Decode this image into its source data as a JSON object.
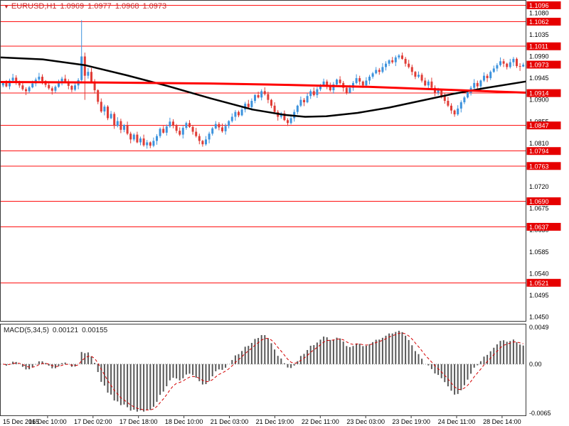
{
  "header": {
    "marker": "▼",
    "symbol_period": "EURUSD,H1",
    "open": "1.0969",
    "high": "1.0977",
    "low": "1.0968",
    "close": "1.0973"
  },
  "macd": {
    "label": "MACD(5,34,5)",
    "value_main": "0.00121",
    "value_signal": "0.00155",
    "axis": {
      "top": "0.0049",
      "zero": "0.00",
      "bottom": "-0.0065"
    }
  },
  "colors": {
    "bull": "#3d93dd",
    "bear": "#e03c36",
    "sr_line": "#ff1010",
    "badge_bg": "#e60000",
    "badge_text": "#ffffff",
    "ma_black": "#000000",
    "ma_red": "#ff0000",
    "hist": "#585858",
    "signal": "#d40000",
    "axis_text": "#000000",
    "border": "#3a3a3a"
  },
  "chart_data": {
    "type": "candlestick",
    "title": "EURUSD,H1",
    "symbol": "EURUSD",
    "timeframe": "H1",
    "ylim": [
      1.0442,
      1.1104
    ],
    "price_scale": 10000,
    "price_ticks": [
      1.108,
      1.1035,
      1.099,
      1.0945,
      1.09,
      1.0855,
      1.081,
      1.072,
      1.0675,
      1.063,
      1.0585,
      1.054,
      1.0495,
      1.045
    ],
    "sr_levels": [
      1.1096,
      1.1062,
      1.1011,
      1.0914,
      1.0847,
      1.0794,
      1.0763,
      1.069,
      1.0637,
      1.0521
    ],
    "current_price": 1.0973,
    "macd_axis": {
      "max": 0.0049,
      "min": -0.0065
    },
    "macd_params": {
      "fast": 5,
      "slow": 34,
      "signal": 5,
      "last_main": 0.00121,
      "last_signal": 0.00155
    },
    "time_labels": [
      "15 Dec 2015",
      "16 Dec 10:00",
      "17 Dec 02:00",
      "17 Dec 18:00",
      "18 Dec 10:00",
      "21 Dec 03:00",
      "21 Dec 19:00",
      "22 Dec 11:00",
      "23 Dec 03:00",
      "23 Dec 19:00",
      "24 Dec 11:00",
      "28 Dec 14:00"
    ],
    "ma_black": [
      [
        0,
        1.0988
      ],
      [
        0.08,
        1.0984
      ],
      [
        0.16,
        1.0972
      ],
      [
        0.24,
        1.0951
      ],
      [
        0.32,
        1.0928
      ],
      [
        0.4,
        1.0903
      ],
      [
        0.48,
        1.088
      ],
      [
        0.54,
        1.0869
      ],
      [
        0.58,
        1.0865
      ],
      [
        0.62,
        1.0866
      ],
      [
        0.68,
        1.0873
      ],
      [
        0.74,
        1.0884
      ],
      [
        0.8,
        1.0898
      ],
      [
        0.86,
        1.0912
      ],
      [
        0.92,
        1.0924
      ],
      [
        1,
        1.0938
      ]
    ],
    "ma_red": [
      [
        0,
        1.0937
      ],
      [
        0.2,
        1.0936
      ],
      [
        0.4,
        1.0934
      ],
      [
        0.55,
        1.0931
      ],
      [
        0.7,
        1.0927
      ],
      [
        0.85,
        1.0921
      ],
      [
        1,
        1.0915
      ]
    ],
    "candles_pips": [
      [
        10930,
        10938,
        10926,
        10935
      ],
      [
        10935,
        10941,
        10926,
        10928
      ],
      [
        10928,
        10944,
        10922,
        10940
      ],
      [
        10940,
        10954,
        10937,
        10946
      ],
      [
        10946,
        10951,
        10931,
        10938
      ],
      [
        10938,
        10940,
        10925,
        10930
      ],
      [
        10930,
        10937,
        10919,
        10922
      ],
      [
        10922,
        10926,
        10910,
        10918
      ],
      [
        10918,
        10929,
        10914,
        10926
      ],
      [
        10926,
        10940,
        10924,
        10934
      ],
      [
        10934,
        10946,
        10928,
        10942
      ],
      [
        10942,
        10956,
        10939,
        10948
      ],
      [
        10948,
        10953,
        10932,
        10939
      ],
      [
        10939,
        10941,
        10926,
        10931
      ],
      [
        10931,
        10938,
        10921,
        10924
      ],
      [
        10924,
        10928,
        10911,
        10919
      ],
      [
        10919,
        10930,
        10915,
        10927
      ],
      [
        10927,
        10942,
        10925,
        10936
      ],
      [
        10936,
        10948,
        10930,
        10944
      ],
      [
        10944,
        10952,
        10935,
        10938
      ],
      [
        10938,
        10943,
        10922,
        10929
      ],
      [
        10929,
        10931,
        10916,
        10921
      ],
      [
        10921,
        10937,
        10918,
        10930
      ],
      [
        10930,
        10945,
        10922,
        10941
      ],
      [
        10941,
        11065,
        10936,
        10990
      ],
      [
        10990,
        10998,
        10900,
        10950
      ],
      [
        10950,
        10966,
        10944,
        10958
      ],
      [
        10958,
        10966,
        10935,
        10938
      ],
      [
        10938,
        10943,
        10913,
        10920
      ],
      [
        10920,
        10922,
        10891,
        10896
      ],
      [
        10896,
        10903,
        10873,
        10876
      ],
      [
        10876,
        10890,
        10868,
        10886
      ],
      [
        10886,
        10889,
        10858,
        10862
      ],
      [
        10862,
        10877,
        10860,
        10871
      ],
      [
        10871,
        10875,
        10840,
        10846
      ],
      [
        10846,
        10864,
        10843,
        10856
      ],
      [
        10856,
        10861,
        10831,
        10838
      ],
      [
        10838,
        10850,
        10833,
        10848
      ],
      [
        10848,
        10855,
        10827,
        10830
      ],
      [
        10830,
        10834,
        10810,
        10818
      ],
      [
        10818,
        10831,
        10814,
        10828
      ],
      [
        10828,
        10834,
        10810,
        10812
      ],
      [
        10812,
        10824,
        10806,
        10820
      ],
      [
        10820,
        10828,
        10803,
        10806
      ],
      [
        10806,
        10817,
        10799,
        10812
      ],
      [
        10812,
        10814,
        10800,
        10805
      ],
      [
        10805,
        10822,
        10802,
        10815
      ],
      [
        10815,
        10829,
        10807,
        10825
      ],
      [
        10825,
        10843,
        10821,
        10840
      ],
      [
        10840,
        10846,
        10830,
        10832
      ],
      [
        10832,
        10849,
        10826,
        10845
      ],
      [
        10845,
        10863,
        10842,
        10855
      ],
      [
        10855,
        10860,
        10841,
        10848
      ],
      [
        10848,
        10850,
        10831,
        10836
      ],
      [
        10836,
        10843,
        10825,
        10828
      ],
      [
        10828,
        10846,
        10820,
        10842
      ],
      [
        10842,
        10855,
        10838,
        10852
      ],
      [
        10852,
        10858,
        10842,
        10844
      ],
      [
        10844,
        10848,
        10828,
        10834
      ],
      [
        10834,
        10842,
        10822,
        10825
      ],
      [
        10825,
        10830,
        10808,
        10815
      ],
      [
        10815,
        10817,
        10803,
        10808
      ],
      [
        10808,
        10825,
        10805,
        10818
      ],
      [
        10818,
        10834,
        10810,
        10830
      ],
      [
        10830,
        10844,
        10826,
        10841
      ],
      [
        10841,
        10856,
        10839,
        10850
      ],
      [
        10850,
        10854,
        10837,
        10843
      ],
      [
        10843,
        10851,
        10832,
        10835
      ],
      [
        10835,
        10851,
        10828,
        10846
      ],
      [
        10846,
        10858,
        10841,
        10856
      ],
      [
        10856,
        10872,
        10853,
        10865
      ],
      [
        10865,
        10879,
        10857,
        10875
      ],
      [
        10875,
        10878,
        10864,
        10868
      ],
      [
        10868,
        10886,
        10866,
        10880
      ],
      [
        10880,
        10896,
        10874,
        10892
      ],
      [
        10892,
        10900,
        10882,
        10885
      ],
      [
        10885,
        10903,
        10878,
        10898
      ],
      [
        10898,
        10912,
        10893,
        10910
      ],
      [
        10910,
        10917,
        10903,
        10905
      ],
      [
        10905,
        10922,
        10899,
        10918
      ],
      [
        10918,
        10926,
        10909,
        10912
      ],
      [
        10912,
        10917,
        10893,
        10900
      ],
      [
        10900,
        10902,
        10883,
        10888
      ],
      [
        10888,
        10895,
        10872,
        10875
      ],
      [
        10875,
        10879,
        10857,
        10865
      ],
      [
        10865,
        10875,
        10861,
        10872
      ],
      [
        10872,
        10878,
        10856,
        10858
      ],
      [
        10858,
        10862,
        10846,
        10852
      ],
      [
        10852,
        10870,
        10849,
        10862
      ],
      [
        10862,
        10880,
        10855,
        10875
      ],
      [
        10875,
        10890,
        10870,
        10888
      ],
      [
        10888,
        10907,
        10885,
        10900
      ],
      [
        10900,
        10904,
        10887,
        10895
      ],
      [
        10895,
        10914,
        10893,
        10908
      ],
      [
        10908,
        10922,
        10902,
        10918
      ],
      [
        10918,
        10926,
        10907,
        10910
      ],
      [
        10910,
        10927,
        10904,
        10922
      ],
      [
        10922,
        10933,
        10918,
        10930
      ],
      [
        10930,
        10944,
        10928,
        10938
      ],
      [
        10938,
        10942,
        10922,
        10928
      ],
      [
        10928,
        10936,
        10917,
        10920
      ],
      [
        10920,
        10937,
        10913,
        10932
      ],
      [
        10932,
        10944,
        10927,
        10942
      ],
      [
        10942,
        10949,
        10932,
        10935
      ],
      [
        10935,
        10939,
        10917,
        10925
      ],
      [
        10925,
        10928,
        10911,
        10915
      ],
      [
        10915,
        10931,
        10913,
        10925
      ],
      [
        10925,
        10939,
        10919,
        10935
      ],
      [
        10935,
        10953,
        10932,
        10945
      ],
      [
        10945,
        10950,
        10931,
        10938
      ],
      [
        10938,
        10940,
        10925,
        10930
      ],
      [
        10930,
        10947,
        10927,
        10940
      ],
      [
        10940,
        10952,
        10932,
        10948
      ],
      [
        10948,
        10958,
        10944,
        10955
      ],
      [
        10955,
        10968,
        10953,
        10962
      ],
      [
        10962,
        10966,
        10952,
        10958
      ],
      [
        10958,
        10976,
        10955,
        10968
      ],
      [
        10968,
        10980,
        10961,
        10975
      ],
      [
        10975,
        10984,
        10970,
        10982
      ],
      [
        10982,
        10989,
        10975,
        10978
      ],
      [
        10978,
        10992,
        10970,
        10988
      ],
      [
        10988,
        10995,
        10984,
        10992
      ],
      [
        10992,
        10998,
        10983,
        10985
      ],
      [
        10985,
        10989,
        10969,
        10975
      ],
      [
        10975,
        10983,
        10965,
        10968
      ],
      [
        10968,
        10973,
        10951,
        10958
      ],
      [
        10958,
        10960,
        10943,
        10948
      ],
      [
        10948,
        10959,
        10945,
        10952
      ],
      [
        10952,
        10956,
        10936,
        10940
      ],
      [
        10940,
        10946,
        10928,
        10930
      ],
      [
        10930,
        10942,
        10924,
        10938
      ],
      [
        10938,
        10946,
        10922,
        10925
      ],
      [
        10925,
        10930,
        10908,
        10915
      ],
      [
        10915,
        10925,
        10910,
        10920
      ],
      [
        10920,
        10922,
        10903,
        10908
      ],
      [
        10908,
        10914,
        10892,
        10898
      ],
      [
        10898,
        10906,
        10885,
        10888
      ],
      [
        10888,
        10893,
        10871,
        10878
      ],
      [
        10878,
        10880,
        10865,
        10870
      ],
      [
        10870,
        10889,
        10867,
        10882
      ],
      [
        10882,
        10899,
        10874,
        10895
      ],
      [
        10895,
        10908,
        10891,
        10905
      ],
      [
        10905,
        10921,
        10903,
        10915
      ],
      [
        10915,
        10929,
        10909,
        10925
      ],
      [
        10925,
        10943,
        10922,
        10935
      ],
      [
        10935,
        10940,
        10921,
        10928
      ],
      [
        10928,
        10942,
        10923,
        10940
      ],
      [
        10940,
        10957,
        10937,
        10950
      ],
      [
        10950,
        10954,
        10937,
        10945
      ],
      [
        10945,
        10961,
        10941,
        10958
      ],
      [
        10958,
        10971,
        10956,
        10965
      ],
      [
        10965,
        10976,
        10959,
        10972
      ],
      [
        10972,
        10988,
        10969,
        10980
      ],
      [
        10980,
        10985,
        10968,
        10975
      ],
      [
        10975,
        10977,
        10963,
        10968
      ],
      [
        10968,
        10985,
        10965,
        10978
      ],
      [
        10978,
        10989,
        10970,
        10985
      ],
      [
        10985,
        10988,
        10966,
        10970
      ],
      [
        10970,
        10976,
        10960,
        10969
      ],
      [
        10969,
        10977,
        10968,
        10973
      ]
    ]
  }
}
